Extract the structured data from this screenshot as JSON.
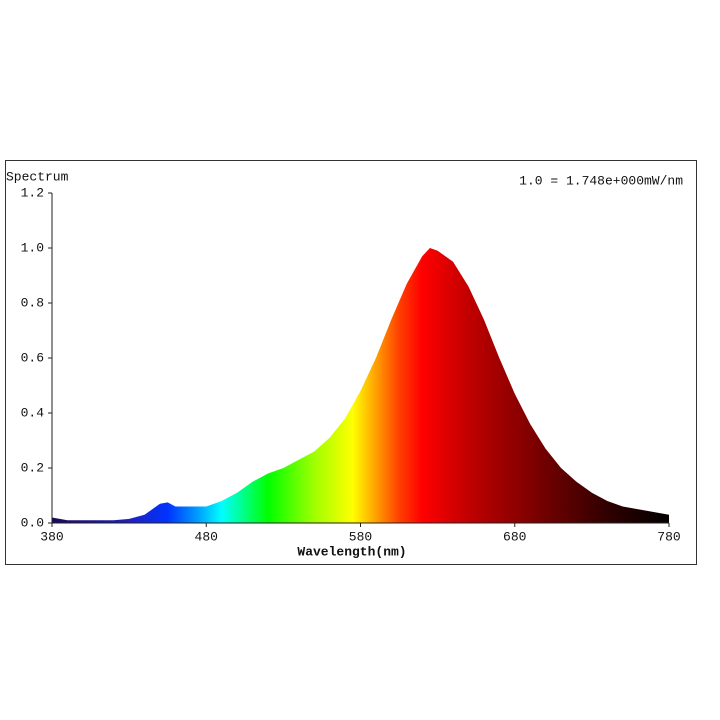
{
  "chart_data": {
    "type": "area",
    "y_label": "Spectrum",
    "annotation": "1.0 = 1.748e+000mW/nm",
    "x_label": "Wavelength(nm)",
    "x": [
      380,
      390,
      400,
      410,
      420,
      430,
      440,
      450,
      455,
      460,
      470,
      480,
      490,
      500,
      510,
      520,
      530,
      540,
      550,
      560,
      570,
      580,
      590,
      600,
      610,
      620,
      625,
      630,
      640,
      650,
      660,
      670,
      680,
      690,
      700,
      710,
      720,
      730,
      740,
      750,
      760,
      770,
      780
    ],
    "values": [
      0.02,
      0.01,
      0.01,
      0.01,
      0.01,
      0.015,
      0.03,
      0.07,
      0.075,
      0.06,
      0.06,
      0.06,
      0.08,
      0.11,
      0.15,
      0.18,
      0.2,
      0.23,
      0.26,
      0.31,
      0.38,
      0.48,
      0.6,
      0.74,
      0.87,
      0.97,
      1.0,
      0.99,
      0.95,
      0.86,
      0.74,
      0.6,
      0.47,
      0.36,
      0.27,
      0.2,
      0.15,
      0.11,
      0.08,
      0.06,
      0.05,
      0.04,
      0.03
    ],
    "xlim": [
      380,
      780
    ],
    "xticks": [
      380,
      480,
      580,
      680,
      780
    ],
    "ylim": [
      0,
      1.2
    ],
    "yticks": [
      {
        "value": 0,
        "label": "0.0"
      },
      0.2,
      0.4,
      0.6,
      0.8,
      {
        "value": 1,
        "label": "1.0"
      },
      1.2
    ]
  }
}
